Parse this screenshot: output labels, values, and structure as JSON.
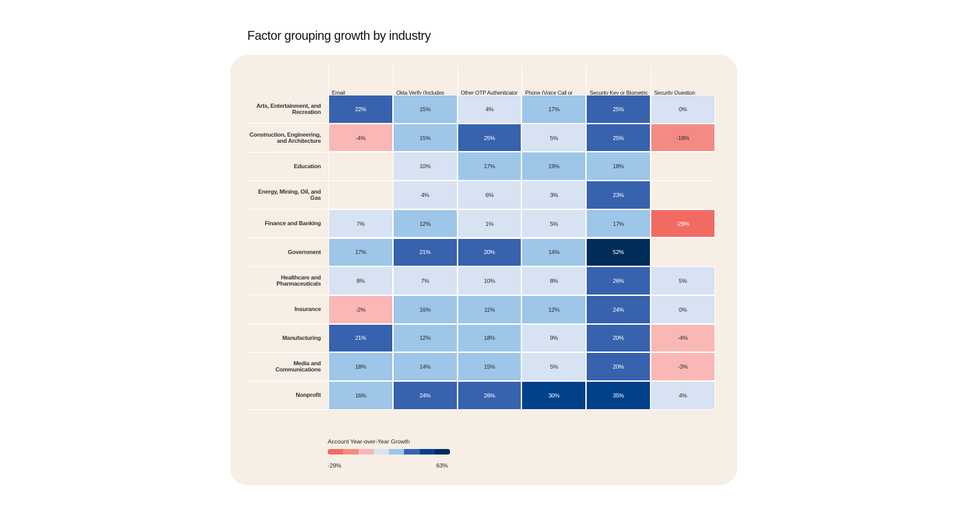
{
  "chart_data": {
    "type": "heatmap",
    "title": "Factor grouping growth by industry",
    "columns": [
      "Email",
      "Okta Verify (Includes Push and FastPass)",
      "Other OTP Authenticator",
      "Phone (Voice Call or SMS)",
      "Security Key or Biometric",
      "Security Question"
    ],
    "rows": [
      "Arts, Entertainment, and Recreation",
      "Construction, Engineering, and Architecture",
      "Education",
      "Energy, Mining, Oil, and Gas",
      "Finance and Banking",
      "Government",
      "Healthcare and Pharmaceuticals",
      "Insurance",
      "Manufacturing",
      "Media and Communications",
      "Nonprofit"
    ],
    "values": [
      [
        22,
        15,
        4,
        17,
        25,
        0
      ],
      [
        -4,
        15,
        25,
        5,
        25,
        -18
      ],
      [
        null,
        10,
        17,
        19,
        18,
        null
      ],
      [
        null,
        4,
        6,
        3,
        23,
        null
      ],
      [
        7,
        12,
        1,
        5,
        17,
        -29
      ],
      [
        17,
        21,
        20,
        14,
        52,
        null
      ],
      [
        8,
        7,
        10,
        8,
        26,
        5
      ],
      [
        -2,
        16,
        11,
        12,
        24,
        0
      ],
      [
        21,
        12,
        18,
        9,
        20,
        -4
      ],
      [
        18,
        14,
        15,
        5,
        20,
        -3
      ],
      [
        16,
        24,
        26,
        30,
        35,
        4
      ]
    ],
    "unit": "%",
    "legend": {
      "title": "Account Year-over-Year Growth",
      "min_label": "-29%",
      "max_label": "63%",
      "colors": [
        "#f26b63",
        "#f48a84",
        "#f9b8b5",
        "#d7e2f2",
        "#9dc6e8",
        "#3762ae",
        "#00418a",
        "#002c5a"
      ]
    }
  }
}
